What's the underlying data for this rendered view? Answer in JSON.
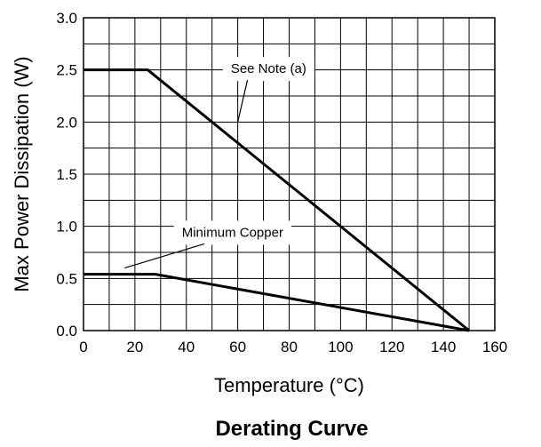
{
  "chart_data": {
    "type": "line",
    "title": "Derating Curve",
    "xlabel": "Temperature (°C)",
    "ylabel": "Max Power Dissipation (W)",
    "xlim": [
      0,
      160
    ],
    "ylim": [
      0,
      3.0
    ],
    "xticks": [
      0,
      20,
      40,
      60,
      80,
      100,
      120,
      140,
      160
    ],
    "xtick_labels": [
      "0",
      "20",
      "40",
      "60",
      "80",
      "100",
      "120",
      "140",
      "160"
    ],
    "yticks": [
      0,
      0.5,
      1.0,
      1.5,
      2.0,
      2.5,
      3.0
    ],
    "ytick_labels": [
      "0.0",
      "0.5",
      "1.0",
      "1.5",
      "2.0",
      "2.5",
      "3.0"
    ],
    "grid": true,
    "grid_step_x": 10,
    "grid_step_y": 0.25,
    "series": [
      {
        "x": [
          0,
          25,
          150
        ],
        "y": [
          2.5,
          2.5,
          0.0
        ]
      },
      {
        "x": [
          0,
          28,
          150
        ],
        "y": [
          0.54,
          0.54,
          0.0
        ]
      }
    ],
    "annotations": [
      {
        "text": "See Note (a)",
        "x": 72,
        "y": 2.47,
        "line_to": [
          60,
          2.0
        ]
      },
      {
        "text": "Minimum Copper",
        "x": 58,
        "y": 0.9,
        "line_to": [
          16,
          0.6
        ]
      }
    ]
  }
}
